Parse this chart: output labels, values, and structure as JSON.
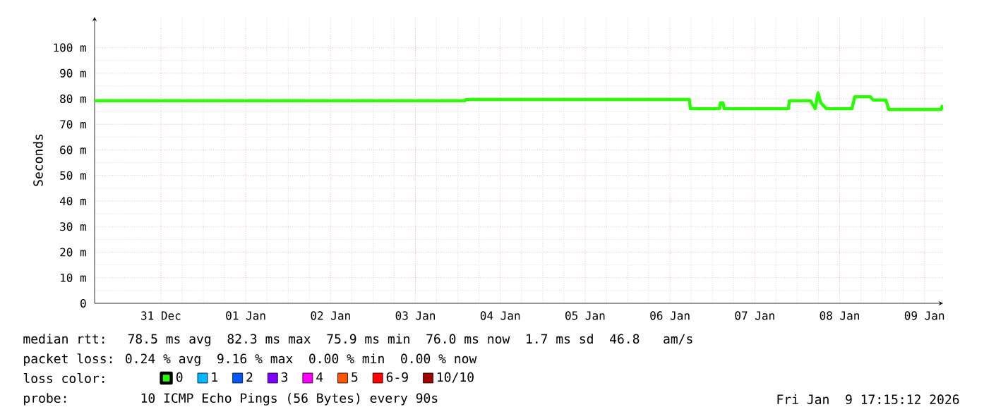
{
  "chart_data": {
    "type": "line",
    "ylabel": "Seconds",
    "xlim": [
      "2025-12-30T17:15",
      "2026-01-09T17:15"
    ],
    "xticks": [
      {
        "value": "2025-12-31T12:00",
        "label": "31 Dec"
      },
      {
        "value": "2026-01-01T12:00",
        "label": "01 Jan"
      },
      {
        "value": "2026-01-02T12:00",
        "label": "02 Jan"
      },
      {
        "value": "2026-01-03T12:00",
        "label": "03 Jan"
      },
      {
        "value": "2026-01-04T12:00",
        "label": "04 Jan"
      },
      {
        "value": "2026-01-05T12:00",
        "label": "05 Jan"
      },
      {
        "value": "2026-01-06T12:00",
        "label": "06 Jan"
      },
      {
        "value": "2026-01-07T12:00",
        "label": "07 Jan"
      },
      {
        "value": "2026-01-08T12:00",
        "label": "08 Jan"
      },
      {
        "value": "2026-01-09T12:00",
        "label": "09 Jan"
      }
    ],
    "ylim": [
      0,
      112
    ],
    "yticks": [
      0,
      {
        "value": 10,
        "label": "10 m"
      },
      {
        "value": 20,
        "label": "20 m"
      },
      {
        "value": 30,
        "label": "30 m"
      },
      {
        "value": 40,
        "label": "40 m"
      },
      {
        "value": 50,
        "label": "50 m"
      },
      {
        "value": 60,
        "label": "60 m"
      },
      {
        "value": 70,
        "label": "70 m"
      },
      {
        "value": 80,
        "label": "80 m"
      },
      {
        "value": 90,
        "label": "90 m"
      },
      {
        "value": 100,
        "label": "100 m"
      }
    ],
    "grid": true,
    "legend": "bottom",
    "legend_title": "loss color:",
    "series": [
      {
        "name": "0",
        "color": "#26ff00",
        "x": [
          "2025-12-30T17:15",
          "2026-01-04T02:00",
          "2026-01-04T02:17",
          "2026-01-06T17:30",
          "2026-01-06T17:46",
          "2026-01-07T02:00",
          "2026-01-07T02:17",
          "2026-01-07T03:00",
          "2026-01-07T03:20",
          "2026-01-07T21:30",
          "2026-01-07T21:46",
          "2026-01-08T03:46",
          "2026-01-08T05:05",
          "2026-01-08T05:53",
          "2026-01-08T06:40",
          "2026-01-08T08:17",
          "2026-01-08T15:29",
          "2026-01-08T16:17",
          "2026-01-08T20:41",
          "2026-01-08T21:29",
          "2026-01-09T01:05",
          "2026-01-09T01:53",
          "2026-01-09T16:41",
          "2026-01-09T17:05"
        ],
        "values": [
          79.2,
          79.2,
          79.7,
          79.7,
          76.1,
          76.1,
          78.4,
          78.4,
          76.1,
          76.1,
          79.2,
          79.2,
          76.1,
          82.3,
          78.4,
          76.1,
          76.1,
          80.8,
          80.8,
          79.5,
          79.5,
          75.8,
          75.8,
          77.5
        ]
      },
      {
        "name": "1",
        "color": "#00b8ff"
      },
      {
        "name": "2",
        "color": "#0059ff"
      },
      {
        "name": "3",
        "color": "#7e00ff"
      },
      {
        "name": "4",
        "color": "#ff00ff"
      },
      {
        "name": "5",
        "color": "#ff5500"
      },
      {
        "name": "6-9",
        "color": "#ff0000"
      },
      {
        "name": "10/10",
        "color": "#a10000"
      }
    ],
    "annotations": [
      "median rtt:  78.5 ms avg  82.3 ms max  75.9 ms min  76.0 ms now  1.7 ms sd  46.8   am/s",
      "packet loss: 0.24 % avg  9.16 % max  0.00 % min  0.00 % now",
      "probe:       10 ICMP Echo Pings (56 Bytes) every 90s",
      "Fri Jan  9 17:15:12 2026"
    ]
  }
}
